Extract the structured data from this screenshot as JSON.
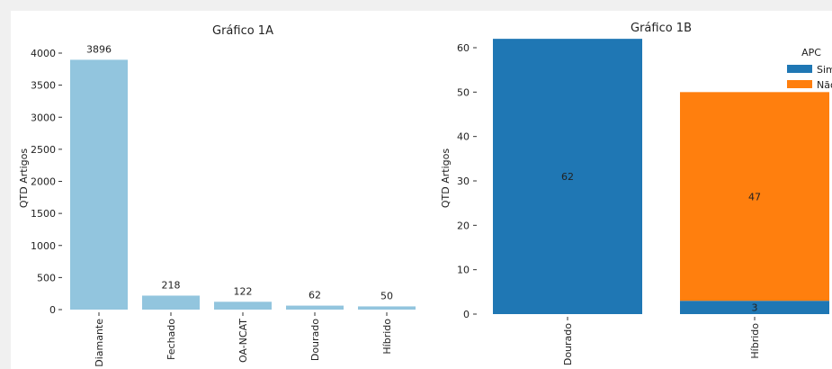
{
  "chart_data": [
    {
      "type": "bar",
      "title": "Gráfico 1A",
      "xlabel": "",
      "ylabel": "QTD Artigos",
      "categories": [
        "Diamante",
        "Fechado",
        "OA-NCAT",
        "Dourado",
        "Híbrido"
      ],
      "values": [
        3896,
        218,
        122,
        62,
        50
      ],
      "data_labels": [
        "3896",
        "218",
        "122",
        "62",
        "50"
      ],
      "yticks": [
        0,
        500,
        1000,
        1500,
        2000,
        2500,
        3000,
        3500,
        4000
      ],
      "ytick_labels": [
        "0",
        "500",
        "1000",
        "1500",
        "2000",
        "2500",
        "3000",
        "3500",
        "4000"
      ],
      "ylim": [
        0,
        4100
      ],
      "color": "#92c5de",
      "grid": false
    },
    {
      "type": "bar",
      "stacked": true,
      "title": "Gráfico 1B",
      "xlabel": "",
      "ylabel": "QTD Artigos",
      "categories": [
        "Dourado",
        "Híbrido"
      ],
      "series": [
        {
          "name": "Sim",
          "values": [
            62,
            3
          ],
          "labels": [
            "62",
            "3"
          ],
          "color": "#1f77b4"
        },
        {
          "name": "Não",
          "values": [
            0,
            47
          ],
          "labels": [
            "",
            "47"
          ],
          "color": "#ff7f0e"
        }
      ],
      "yticks": [
        0,
        10,
        20,
        30,
        40,
        50,
        60
      ],
      "ytick_labels": [
        "0",
        "10",
        "20",
        "30",
        "40",
        "50",
        "60"
      ],
      "ylim": [
        0,
        62
      ],
      "legend": {
        "title": "APC",
        "position": "top-right"
      },
      "grid": false
    }
  ]
}
